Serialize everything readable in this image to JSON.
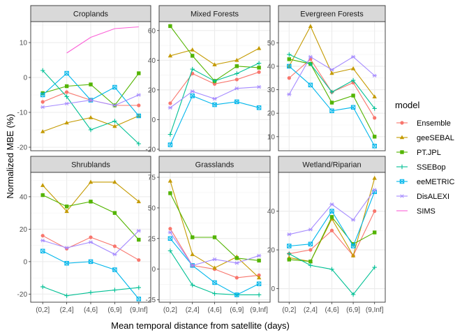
{
  "chart_data": {
    "type": "line",
    "xlabel": "Mean temporal distance from satellite (days)",
    "ylabel": "Normalized MBE (%)",
    "categories": [
      "(0,2]",
      "(2,4]",
      "(4,6]",
      "(6,9]",
      "(9,Inf]"
    ],
    "legend": {
      "title": "model",
      "position": "right",
      "entries": [
        {
          "name": "Ensemble",
          "color": "#F8766D",
          "shape": "circle"
        },
        {
          "name": "geeSEBAL",
          "color": "#C49A00",
          "shape": "triangle"
        },
        {
          "name": "PT.JPL",
          "color": "#53B400",
          "shape": "square"
        },
        {
          "name": "SSEBop",
          "color": "#00C094",
          "shape": "plus"
        },
        {
          "name": "eeMETRIC",
          "color": "#00B6EB",
          "shape": "square-open-x"
        },
        {
          "name": "DisALEXI",
          "color": "#A58AFF",
          "shape": "asterisk"
        },
        {
          "name": "SIMS",
          "color": "#FB61D7",
          "shape": "none"
        }
      ]
    },
    "grid": true,
    "panels": [
      {
        "title": "Croplands",
        "ylim": [
          -21,
          16
        ],
        "yticks": [
          -20,
          -10,
          0,
          10
        ],
        "series": [
          {
            "name": "Ensemble",
            "values": [
              -7,
              -4.2,
              -6.5,
              -8,
              -8
            ]
          },
          {
            "name": "geeSEBAL",
            "values": [
              -15.5,
              -13,
              -11.5,
              -14,
              -11
            ]
          },
          {
            "name": "PT.JPL",
            "values": [
              -4.5,
              -2.5,
              -2,
              -8,
              1.2
            ]
          },
          {
            "name": "SSEBop",
            "values": [
              2,
              -5.5,
              -15,
              -12.5,
              -19
            ]
          },
          {
            "name": "eeMETRIC",
            "values": [
              -5,
              1.2,
              -6.5,
              -2.8,
              -11
            ]
          },
          {
            "name": "DisALEXI",
            "values": [
              -8.5,
              -7.5,
              -6.5,
              -8,
              -5
            ]
          },
          {
            "name": "SIMS",
            "values": [
              null,
              7,
              11.5,
              14,
              14.5
            ]
          }
        ]
      },
      {
        "title": "Mixed Forests",
        "ylim": [
          -21,
          66
        ],
        "yticks": [
          -20,
          0,
          20,
          40,
          60
        ],
        "series": [
          {
            "name": "Ensemble",
            "values": [
              11,
              31,
              24,
              27,
              32
            ]
          },
          {
            "name": "geeSEBAL",
            "values": [
              43,
              47,
              37,
              40,
              48
            ]
          },
          {
            "name": "PT.JPL",
            "values": [
              63,
              43,
              26,
              36,
              35
            ]
          },
          {
            "name": "SSEBop",
            "values": [
              -10,
              34,
              26,
              31,
              38
            ]
          },
          {
            "name": "eeMETRIC",
            "values": [
              -17,
              16,
              10,
              12,
              8
            ]
          },
          {
            "name": "DisALEXI",
            "values": [
              8,
              19,
              14,
              21,
              22
            ]
          },
          {
            "name": "SIMS",
            "values": [
              null,
              null,
              null,
              null,
              null
            ]
          }
        ]
      },
      {
        "title": "Evergreen Forests",
        "ylim": [
          4,
          59
        ],
        "yticks": [
          10,
          20,
          30,
          40,
          50
        ],
        "series": [
          {
            "name": "Ensemble",
            "values": [
              35,
              43,
              29,
              33,
              18
            ]
          },
          {
            "name": "geeSEBAL",
            "values": [
              40,
              57,
              37,
              39,
              27
            ]
          },
          {
            "name": "PT.JPL",
            "values": [
              43,
              41,
              24.5,
              27.5,
              10
            ]
          },
          {
            "name": "SSEBop",
            "values": [
              45,
              41,
              29,
              34,
              22
            ]
          },
          {
            "name": "eeMETRIC",
            "values": [
              40,
              32,
              21,
              22.5,
              6
            ]
          },
          {
            "name": "DisALEXI",
            "values": [
              28,
              44,
              38.5,
              44,
              36
            ]
          },
          {
            "name": "SIMS",
            "values": [
              null,
              null,
              null,
              null,
              null
            ]
          }
        ]
      },
      {
        "title": "Shrublands",
        "ylim": [
          -25,
          55
        ],
        "yticks": [
          -20,
          0,
          20,
          40
        ],
        "series": [
          {
            "name": "Ensemble",
            "values": [
              16,
              8,
              15,
              9.5,
              1
            ]
          },
          {
            "name": "geeSEBAL",
            "values": [
              47,
              31,
              49,
              49,
              37
            ]
          },
          {
            "name": "PT.JPL",
            "values": [
              41,
              34,
              37,
              30,
              13.5
            ]
          },
          {
            "name": "SSEBop",
            "values": [
              -15.5,
              -21,
              -19,
              -17.5,
              -16
            ]
          },
          {
            "name": "eeMETRIC",
            "values": [
              6.5,
              -1,
              0,
              -5,
              -23
            ]
          },
          {
            "name": "DisALEXI",
            "values": [
              13,
              8.5,
              12,
              4.5,
              19
            ]
          },
          {
            "name": "SIMS",
            "values": [
              null,
              null,
              null,
              null,
              null
            ]
          }
        ]
      },
      {
        "title": "Grasslands",
        "ylim": [
          -27,
          79
        ],
        "yticks": [
          -25,
          0,
          25,
          50,
          75
        ],
        "series": [
          {
            "name": "Ensemble",
            "values": [
              33,
              3,
              0,
              -7,
              -5
            ]
          },
          {
            "name": "geeSEBAL",
            "values": [
              72,
              12,
              1,
              10,
              -7
            ]
          },
          {
            "name": "PT.JPL",
            "values": [
              62,
              26,
              26,
              9,
              7
            ]
          },
          {
            "name": "SSEBop",
            "values": [
              15,
              -13,
              -20,
              -21,
              -21
            ]
          },
          {
            "name": "eeMETRIC",
            "values": [
              25,
              3,
              -11,
              -21,
              -12
            ]
          },
          {
            "name": "DisALEXI",
            "values": [
              30,
              3,
              8,
              5,
              11
            ]
          },
          {
            "name": "SIMS",
            "values": [
              null,
              null,
              null,
              null,
              null
            ]
          }
        ]
      },
      {
        "title": "Wetland/Riparian",
        "ylim": [
          -7,
          60
        ],
        "yticks": [
          0,
          20,
          40
        ],
        "series": [
          {
            "name": "Ensemble",
            "values": [
              18,
              20,
              30,
              17,
              40
            ]
          },
          {
            "name": "geeSEBAL",
            "values": [
              16,
              14,
              36,
              17,
              57
            ]
          },
          {
            "name": "PT.JPL",
            "values": [
              15,
              14,
              37,
              23,
              29
            ]
          },
          {
            "name": "SSEBop",
            "values": [
              18,
              12,
              10,
              -3,
              11
            ]
          },
          {
            "name": "eeMETRIC",
            "values": [
              22,
              23,
              40,
              22,
              50
            ]
          },
          {
            "name": "DisALEXI",
            "values": [
              28,
              30.5,
              43.5,
              35.5,
              51
            ]
          },
          {
            "name": "SIMS",
            "values": [
              null,
              null,
              null,
              null,
              null
            ]
          }
        ]
      }
    ]
  }
}
